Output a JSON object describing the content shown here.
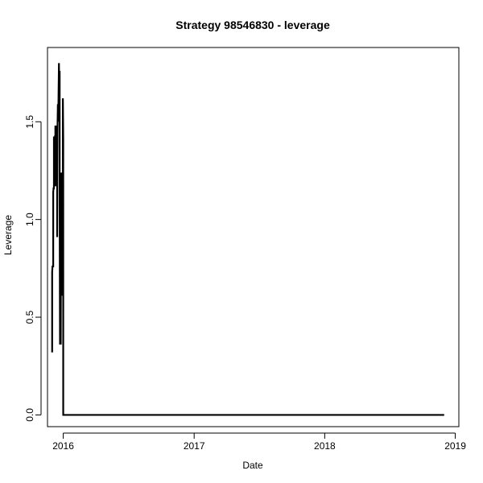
{
  "chart_data": {
    "type": "line",
    "title": "Strategy 98546830 - leverage",
    "xlabel": "Date",
    "ylabel": "Leverage",
    "xlim": [
      "2015-11-18",
      "2019-01-11"
    ],
    "ylim": [
      -0.06,
      1.88
    ],
    "x_ticks": [
      {
        "date": "2016-01-01",
        "label": "2016"
      },
      {
        "date": "2017-01-01",
        "label": "2017"
      },
      {
        "date": "2018-01-01",
        "label": "2018"
      },
      {
        "date": "2019-01-01",
        "label": "2019"
      }
    ],
    "y_ticks": [
      {
        "value": 0.0,
        "label": "0.0"
      },
      {
        "value": 0.5,
        "label": "0.5"
      },
      {
        "value": 1.0,
        "label": "1.0"
      },
      {
        "value": 1.5,
        "label": "1.5"
      }
    ],
    "series": [
      {
        "color": "#000000",
        "points": [
          [
            "2015-12-01",
            0.32
          ],
          [
            "2015-12-01",
            0.73
          ],
          [
            "2015-12-02",
            0.76
          ],
          [
            "2015-12-04",
            0.76
          ],
          [
            "2015-12-04",
            1.14
          ],
          [
            "2015-12-05",
            1.16
          ],
          [
            "2015-12-06",
            1.16
          ],
          [
            "2015-12-06",
            1.42
          ],
          [
            "2015-12-08",
            1.42
          ],
          [
            "2015-12-08",
            1.17
          ],
          [
            "2015-12-09",
            1.43
          ],
          [
            "2015-12-10",
            1.17
          ],
          [
            "2015-12-10",
            1.48
          ],
          [
            "2015-12-12",
            1.46
          ],
          [
            "2015-12-13",
            1.46
          ],
          [
            "2015-12-13",
            1.44
          ],
          [
            "2015-12-14",
            1.48
          ],
          [
            "2015-12-15",
            1.45
          ],
          [
            "2015-12-15",
            0.91
          ],
          [
            "2015-12-16",
            1.47
          ],
          [
            "2015-12-17",
            1.59
          ],
          [
            "2015-12-18",
            1.5
          ],
          [
            "2015-12-19",
            1.65
          ],
          [
            "2015-12-20",
            1.8
          ],
          [
            "2015-12-21",
            1.66
          ],
          [
            "2015-12-22",
            1.76
          ],
          [
            "2015-12-22",
            1.07
          ],
          [
            "2015-12-23",
            0.36
          ],
          [
            "2015-12-24",
            1.08
          ],
          [
            "2015-12-25",
            0.36
          ],
          [
            "2015-12-26",
            1.24
          ],
          [
            "2015-12-27",
            0.78
          ],
          [
            "2015-12-28",
            1.15
          ],
          [
            "2015-12-29",
            0.61
          ],
          [
            "2015-12-30",
            1.16
          ],
          [
            "2015-12-31",
            1.09
          ],
          [
            "2015-12-31",
            1.62
          ],
          [
            "2016-01-01",
            1.41
          ],
          [
            "2016-01-01",
            0.0
          ],
          [
            "2018-12-01",
            0.0
          ]
        ]
      }
    ],
    "grid": false,
    "legend": "none"
  }
}
